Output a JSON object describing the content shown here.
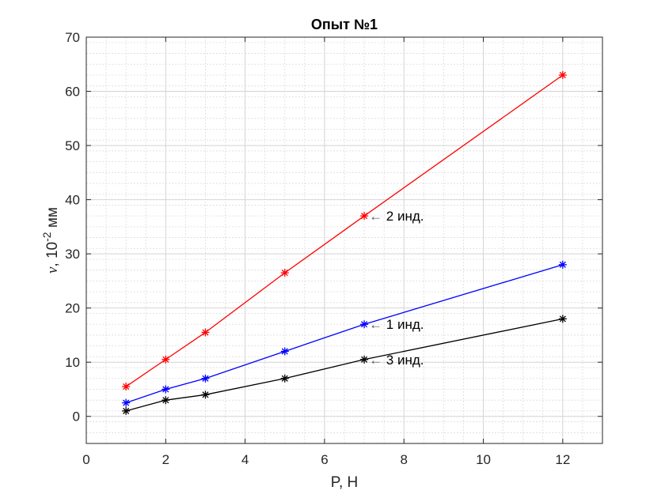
{
  "chart_data": {
    "type": "line",
    "title": "Опыт №1",
    "xlabel": "P, Н",
    "ylabel": {
      "symbol": "ν",
      "prefix": ", 10",
      "exponent": "-2",
      "unit": " мм"
    },
    "xlim": [
      0,
      13
    ],
    "ylim": [
      -5,
      70
    ],
    "xticks": [
      0,
      2,
      4,
      6,
      8,
      10,
      12
    ],
    "yticks": [
      0,
      10,
      20,
      30,
      40,
      50,
      60,
      70
    ],
    "grid": true,
    "minor_grid": true,
    "x": [
      1,
      2,
      3,
      5,
      7,
      12
    ],
    "series": [
      {
        "color": "#ff0000",
        "values": [
          5.5,
          10.5,
          15.5,
          26.5,
          37,
          63
        ]
      },
      {
        "color": "#0000ff",
        "values": [
          2.5,
          5,
          7,
          12,
          17,
          28
        ]
      },
      {
        "color": "#000000",
        "values": [
          1,
          3,
          4,
          7,
          10.5,
          18
        ]
      }
    ],
    "annotations": [
      {
        "text": "2 инд.",
        "arrow": "←",
        "x": 7,
        "y": 37,
        "series": 0
      },
      {
        "text": "1 инд.",
        "arrow": "←",
        "x": 7,
        "y": 17,
        "series": 1
      },
      {
        "text": "3 инд.",
        "arrow": "←",
        "x": 7,
        "y": 10.5,
        "series": 2
      }
    ]
  }
}
